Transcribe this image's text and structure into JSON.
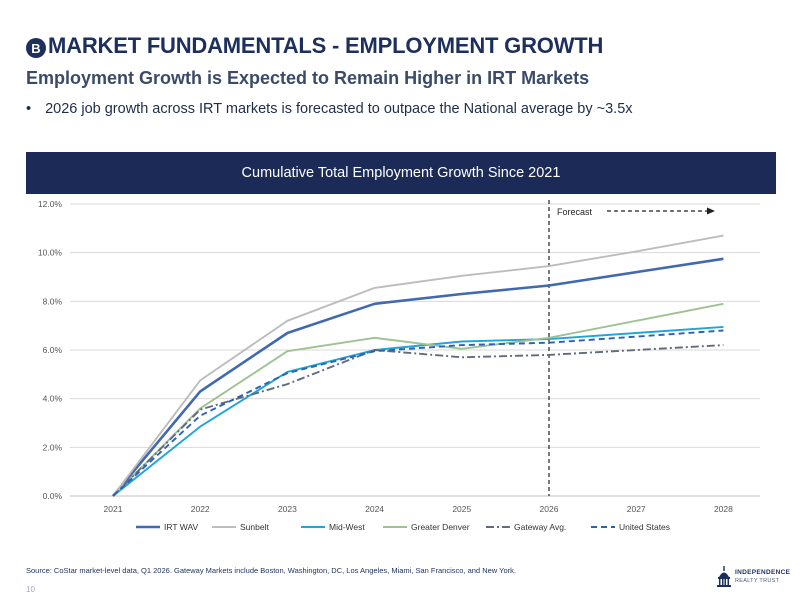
{
  "header": {
    "badge": "B",
    "title": "MARKET FUNDAMENTALS - EMPLOYMENT GROWTH",
    "subtitle": "Employment Growth is Expected to Remain Higher in IRT Markets",
    "bullet_symbol": "•",
    "bullet": "2026 job growth across IRT markets is forecasted to outpace the National average by ~3.5x"
  },
  "chart_header": "Cumulative Total Employment Growth Since 2021",
  "chart_data": {
    "type": "line",
    "x": [
      "2021",
      "2022",
      "2023",
      "2024",
      "2025",
      "2026",
      "2027",
      "2028"
    ],
    "y_ticks": [
      "0.0%",
      "2.0%",
      "4.0%",
      "6.0%",
      "8.0%",
      "10.0%",
      "12.0%"
    ],
    "ylim": [
      0,
      12
    ],
    "grid": "horizontal",
    "legend_position": "bottom",
    "forecast_marker": {
      "x": "2026",
      "label": "Forecast"
    },
    "series": [
      {
        "name": "IRT WAV",
        "color": "#4169b0",
        "dash": "solid",
        "values": [
          0,
          4.3,
          6.7,
          7.9,
          8.3,
          8.65,
          9.2,
          9.75
        ]
      },
      {
        "name": "Sunbelt",
        "color": "#bdbdbd",
        "dash": "solid",
        "values": [
          0,
          4.75,
          7.2,
          8.55,
          9.05,
          9.45,
          10.05,
          10.7
        ]
      },
      {
        "name": "Mid-West",
        "color": "#1fa5db",
        "dash": "solid",
        "values": [
          0,
          2.85,
          5.1,
          6.0,
          6.35,
          6.45,
          6.7,
          6.95
        ]
      },
      {
        "name": "Greater Denver",
        "color": "#9fc293",
        "dash": "solid",
        "values": [
          0,
          3.6,
          5.95,
          6.5,
          6.05,
          6.5,
          7.2,
          7.9
        ]
      },
      {
        "name": "Gateway Avg.",
        "color": "#626a7d",
        "dash": "dashdot",
        "values": [
          0,
          3.55,
          4.6,
          6.0,
          5.7,
          5.8,
          6.0,
          6.2
        ]
      },
      {
        "name": "United States",
        "color": "#2d62b3",
        "dash": "dashed",
        "values": [
          0,
          3.3,
          5.05,
          5.95,
          6.2,
          6.3,
          6.55,
          6.8
        ]
      }
    ]
  },
  "footer": {
    "source": "Source:   CoStar market-level data, Q1 2026. Gateway Markets include Boston, Washington, DC, Los Angeles, Miami, San Francisco, and New York.",
    "page_number": "10",
    "logo_line1": "INDEPENDENCE",
    "logo_line2": "REALTY TRUST"
  }
}
